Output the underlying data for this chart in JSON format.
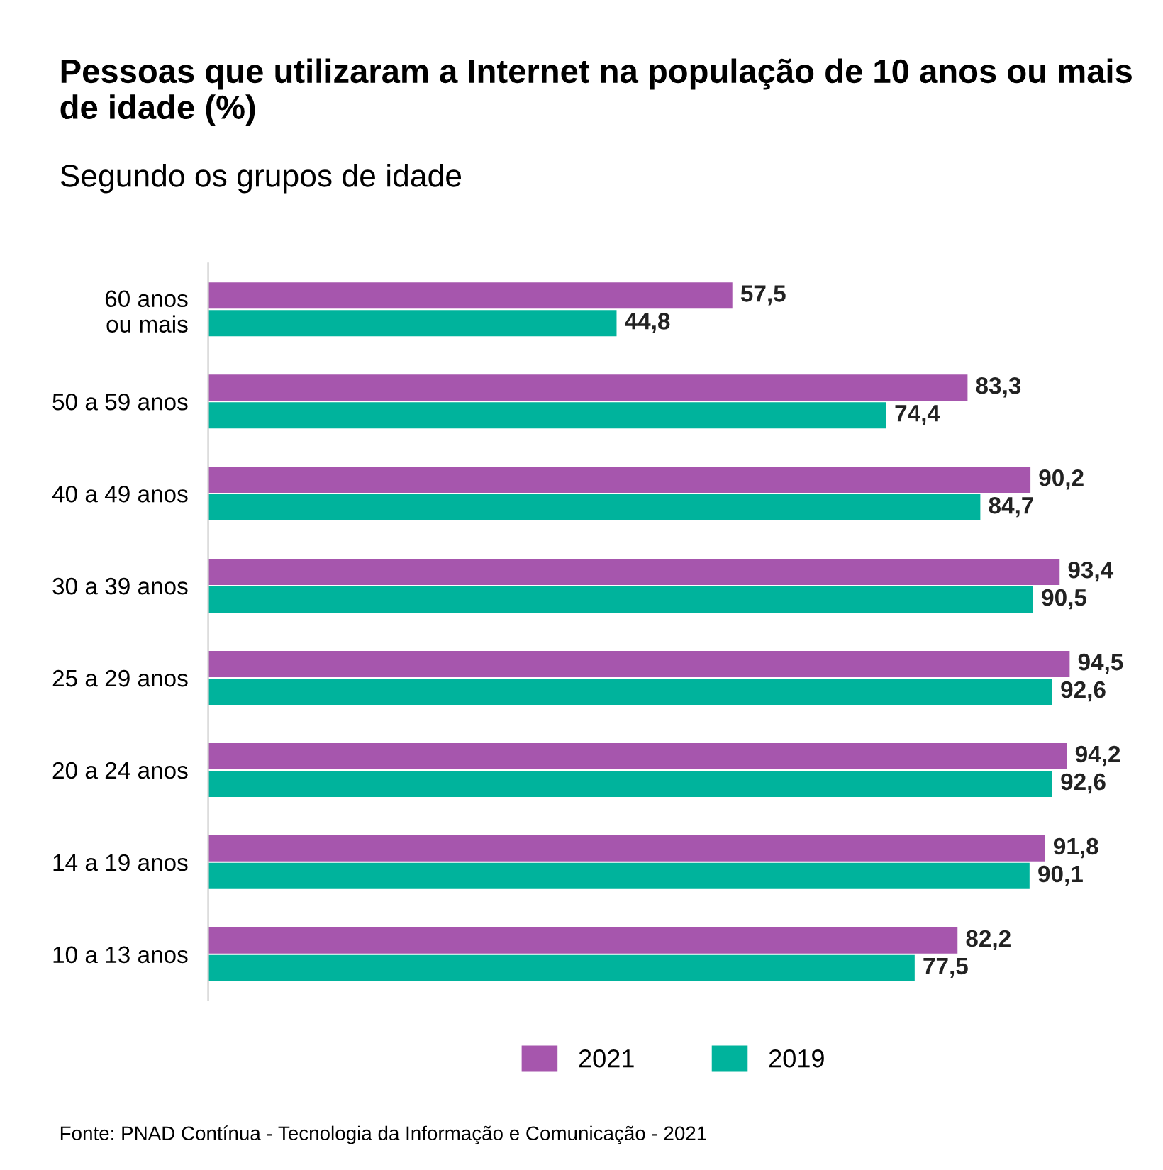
{
  "chart_data": {
    "type": "bar",
    "orientation": "horizontal",
    "title": "Pessoas que utilizaram a Internet na população de 10 anos ou mais de idade (%)",
    "subtitle": "Segundo os grupos de idade",
    "categories": [
      "60 anos\nou mais",
      "50 a 59 anos",
      "40 a 49 anos",
      "30 a 39 anos",
      "25 a 29 anos",
      "20 a 24 anos",
      "14 a 19 anos",
      "10 a 13 anos"
    ],
    "series": [
      {
        "name": "2021",
        "color": "#a656ad",
        "values": [
          57.5,
          83.3,
          90.2,
          93.4,
          94.5,
          94.2,
          91.8,
          82.2
        ],
        "value_labels": [
          "57,5",
          "83,3",
          "90,2",
          "93,4",
          "94,5",
          "94,2",
          "91,8",
          "82,2"
        ]
      },
      {
        "name": "2019",
        "color": "#00b39c",
        "values": [
          44.8,
          74.4,
          84.7,
          90.5,
          92.6,
          92.6,
          90.1,
          77.5
        ],
        "value_labels": [
          "44,8",
          "74,4",
          "84,7",
          "90,5",
          "92,6",
          "92,6",
          "90,1",
          "77,5"
        ]
      }
    ],
    "legend": "bottom",
    "grid": false,
    "tick_labels": "y",
    "annotations": [
      "Fonte: PNAD Contínua - Tecnologia da Informação e Comunicação - 2021"
    ]
  }
}
